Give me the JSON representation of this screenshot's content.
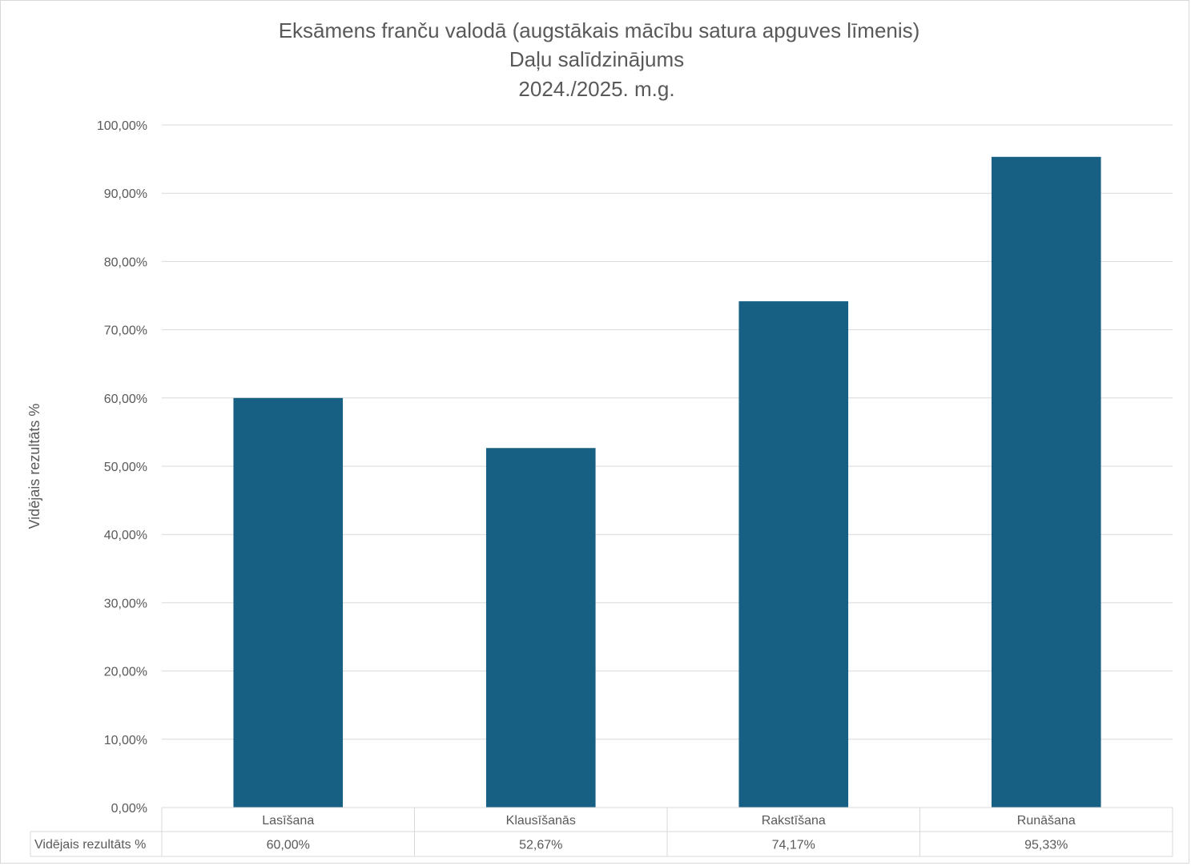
{
  "chart_data": {
    "type": "bar",
    "title": [
      "Eksāmens franču valodā (augstākais mācību satura apguves līmenis)",
      "Daļu salīdzinājums",
      "2024./2025. m.g."
    ],
    "ylabel": "Vidējais rezultāts %",
    "xlabel": "",
    "ylim": [
      0,
      100
    ],
    "y_ticks": [
      "0,00%",
      "10,00%",
      "20,00%",
      "30,00%",
      "40,00%",
      "50,00%",
      "60,00%",
      "70,00%",
      "80,00%",
      "90,00%",
      "100,00%"
    ],
    "grid": true,
    "categories": [
      "Lasīšana",
      "Klausīšanās",
      "Rakstīšana",
      "Runāšana"
    ],
    "series": [
      {
        "name": "Vidējais rezultāts %",
        "values": [
          60.0,
          52.67,
          74.17,
          95.33
        ],
        "labels": [
          "60,00%",
          "52,67%",
          "74,17%",
          "95,33%"
        ]
      }
    ],
    "data_table": true,
    "colors": {
      "bar": "#186083",
      "grid": "#d9d9d9",
      "text": "#595959"
    }
  }
}
